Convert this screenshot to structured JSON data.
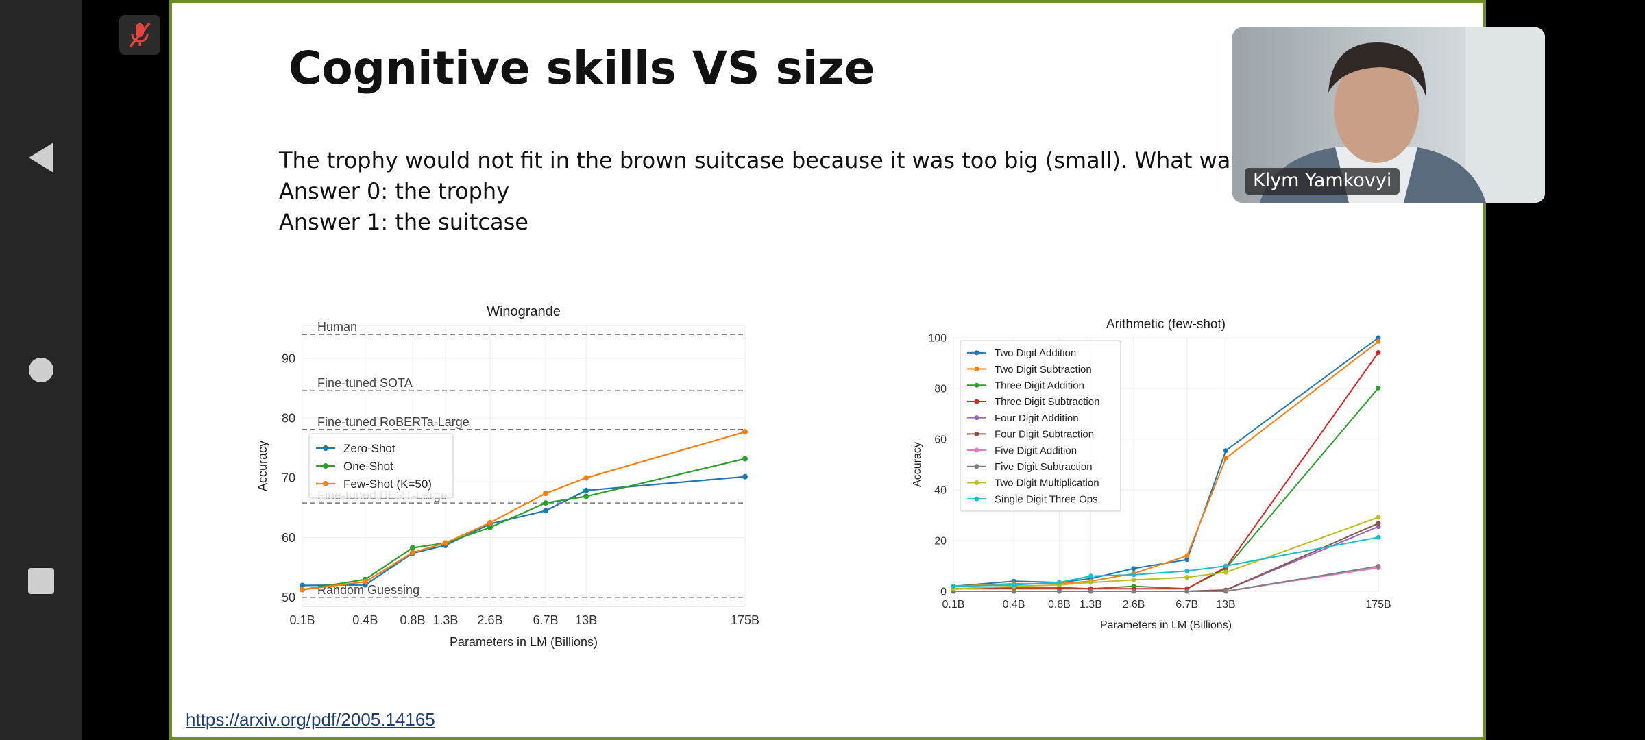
{
  "slide": {
    "title": "Cognitive skills VS size",
    "question": "The trophy would not fit in the brown suitcase because it was too big (small). What was too big (small)?",
    "answer0": "Answer 0: the trophy",
    "answer1": "Answer 1: the suitcase",
    "link": "https://arxiv.org/pdf/2005.14165"
  },
  "participant": {
    "name": "Klym Yamkovyi"
  },
  "icons": {
    "mic": "mic-off-icon",
    "back": "back-triangle-icon",
    "home": "home-circle-icon",
    "recent": "recent-square-icon"
  },
  "colors": {
    "slide_border": "#6e8c2a",
    "mic_muted": "#e0463f"
  },
  "chart_data": [
    {
      "type": "line",
      "title": "Winogrande",
      "xlabel": "Parameters in LM (Billions)",
      "ylabel": "Accuracy",
      "categories": [
        "0.1B",
        "0.4B",
        "0.8B",
        "1.3B",
        "2.6B",
        "6.7B",
        "13B",
        "175B"
      ],
      "x": [
        0.125,
        0.35,
        0.76,
        1.3,
        2.7,
        6.7,
        13,
        175
      ],
      "ylim": [
        48.5,
        95.5
      ],
      "yticks": [
        50,
        60,
        70,
        80,
        90
      ],
      "grid": true,
      "legend_position": "left",
      "reference_lines": [
        {
          "label": "Human",
          "value": 94.0
        },
        {
          "label": "Fine-tuned SOTA",
          "value": 84.6
        },
        {
          "label": "Fine-tuned RoBERTa-Large",
          "value": 78.1
        },
        {
          "label": "Fine-tuned BERT-Large",
          "value": 65.8
        },
        {
          "label": "Random Guessing",
          "value": 50.0
        }
      ],
      "series": [
        {
          "name": "Zero-Shot",
          "color": "#1f77b4",
          "values": [
            52.0,
            52.1,
            57.4,
            58.7,
            62.3,
            64.5,
            67.9,
            70.2
          ]
        },
        {
          "name": "One-Shot",
          "color": "#2ca02c",
          "values": [
            51.3,
            53.0,
            58.3,
            59.1,
            61.7,
            65.8,
            66.9,
            73.2
          ]
        },
        {
          "name": "Few-Shot (K=50)",
          "color": "#ff7f0e",
          "values": [
            51.3,
            52.6,
            57.5,
            59.1,
            62.5,
            67.4,
            70.0,
            77.7
          ]
        }
      ]
    },
    {
      "type": "line",
      "title": "Arithmetic (few-shot)",
      "xlabel": "Parameters in LM (Billions)",
      "ylabel": "Accuracy",
      "categories": [
        "0.1B",
        "0.4B",
        "0.8B",
        "1.3B",
        "2.6B",
        "6.7B",
        "13B",
        "175B"
      ],
      "x": [
        0.125,
        0.35,
        0.76,
        1.3,
        2.7,
        6.7,
        13,
        175
      ],
      "ylim": [
        0,
        100
      ],
      "yticks": [
        0,
        20,
        40,
        60,
        80,
        100
      ],
      "grid": true,
      "legend_position": "top-left",
      "series": [
        {
          "name": "Two Digit Addition",
          "color": "#1f77b4",
          "values": [
            2.0,
            4.0,
            3.5,
            5.0,
            9.0,
            12.5,
            55.5,
            100.0
          ]
        },
        {
          "name": "Two Digit Subtraction",
          "color": "#ff7f0e",
          "values": [
            2.0,
            3.0,
            3.0,
            4.0,
            7.0,
            14.0,
            52.5,
            98.5
          ]
        },
        {
          "name": "Three Digit Addition",
          "color": "#2ca02c",
          "values": [
            1.0,
            1.5,
            1.5,
            1.0,
            2.0,
            1.0,
            9.0,
            80.2
          ]
        },
        {
          "name": "Three Digit Subtraction",
          "color": "#d62728",
          "values": [
            1.0,
            1.0,
            1.0,
            1.0,
            1.0,
            1.0,
            9.5,
            94.2
          ]
        },
        {
          "name": "Four Digit Addition",
          "color": "#9467bd",
          "values": [
            0.0,
            0.0,
            0.0,
            0.0,
            0.0,
            0.0,
            0.5,
            25.5
          ]
        },
        {
          "name": "Four Digit Subtraction",
          "color": "#8c564b",
          "values": [
            0.0,
            0.0,
            0.0,
            0.0,
            0.0,
            0.0,
            0.5,
            26.8
          ]
        },
        {
          "name": "Five Digit Addition",
          "color": "#e377c2",
          "values": [
            0.0,
            0.0,
            0.0,
            0.0,
            0.0,
            0.0,
            0.0,
            9.3
          ]
        },
        {
          "name": "Five Digit Subtraction",
          "color": "#7f7f7f",
          "values": [
            0.0,
            0.0,
            0.0,
            0.0,
            0.0,
            0.0,
            0.0,
            9.9
          ]
        },
        {
          "name": "Two Digit Multiplication",
          "color": "#bcbd22",
          "values": [
            1.0,
            2.0,
            2.5,
            3.5,
            4.5,
            5.5,
            7.5,
            29.2
          ]
        },
        {
          "name": "Single Digit Three Ops",
          "color": "#17becf",
          "values": [
            2.0,
            2.5,
            3.5,
            6.0,
            6.5,
            8.0,
            10.0,
            21.3
          ]
        }
      ]
    }
  ]
}
